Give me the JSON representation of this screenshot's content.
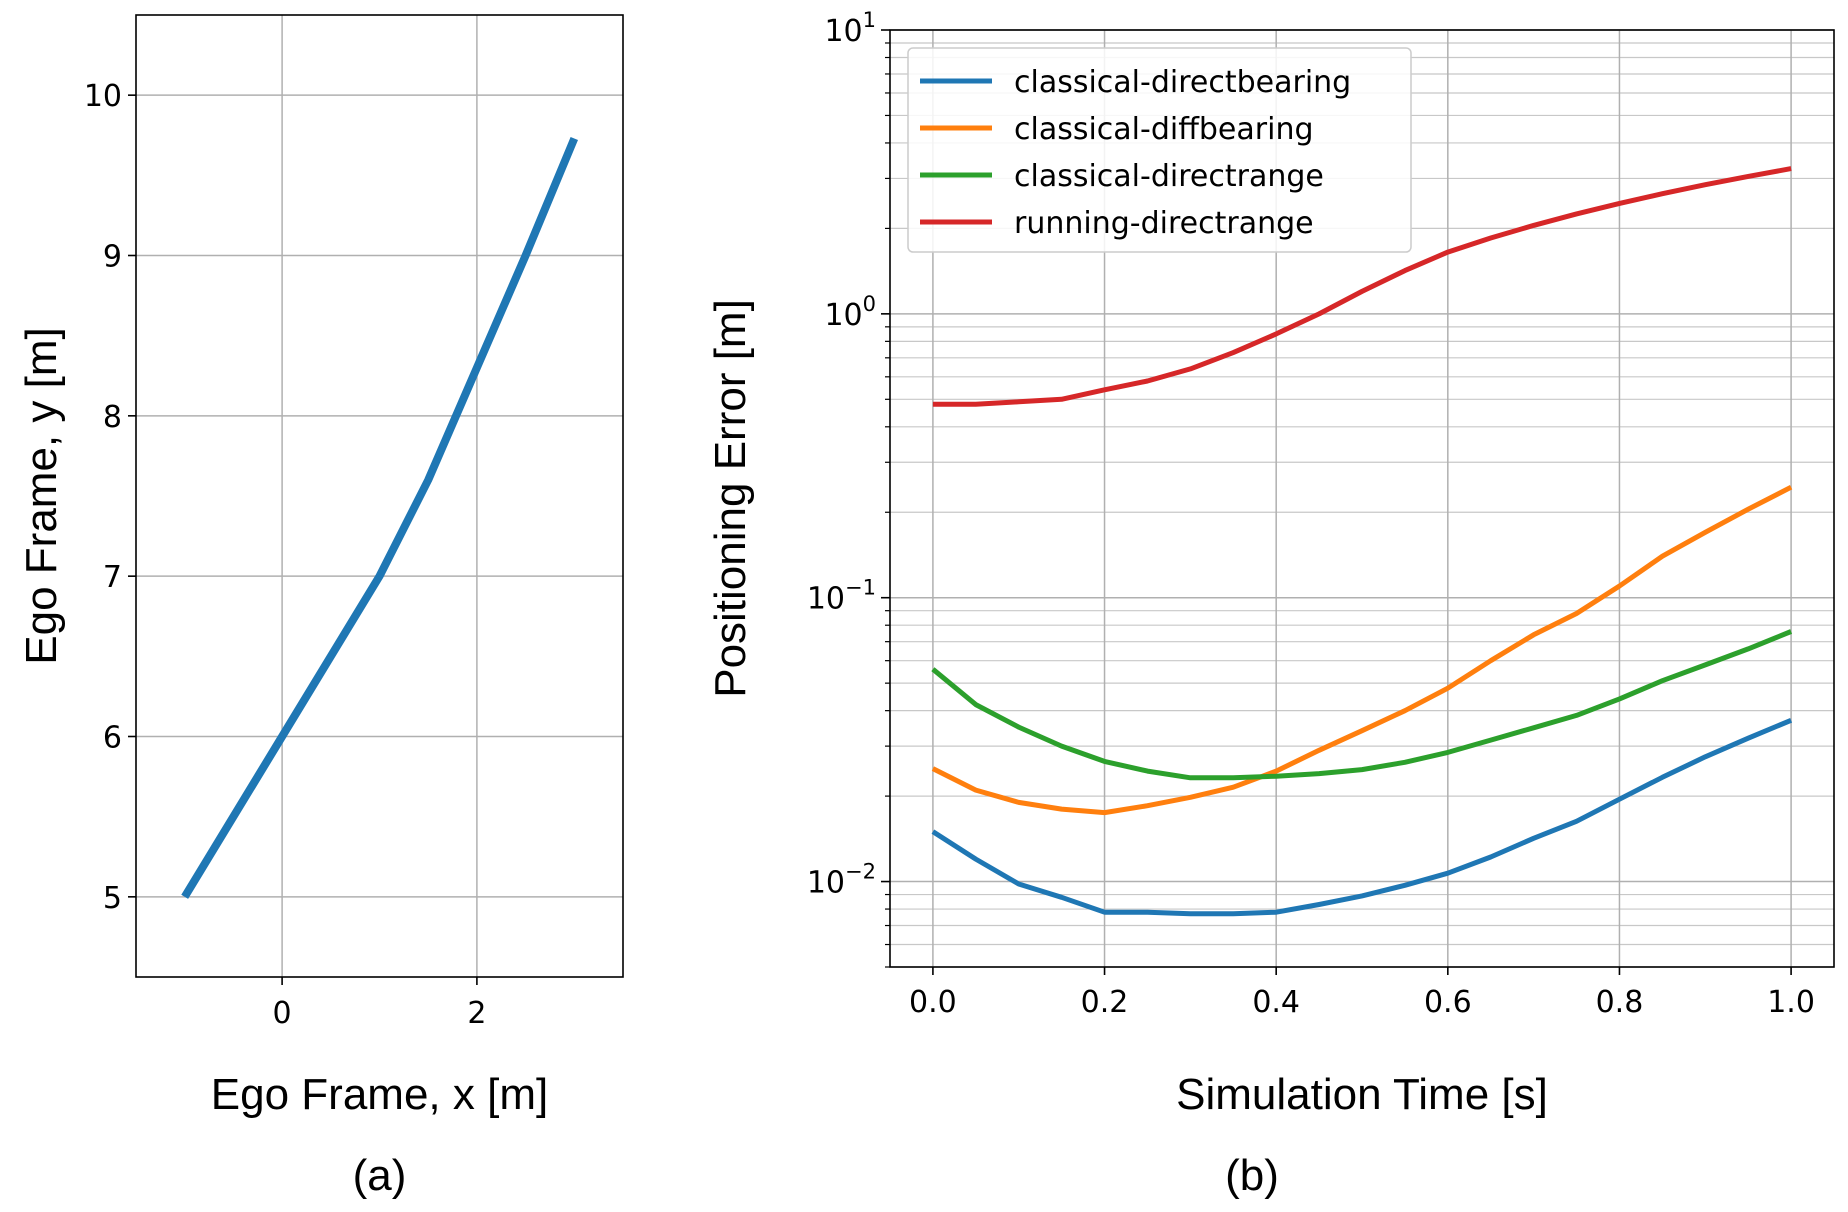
{
  "chart_data": [
    {
      "type": "line",
      "panel_label": "(a)",
      "xlabel": "Ego Frame, x [m]",
      "ylabel": "Ego Frame, y [m]",
      "xlim": [
        -1.5,
        3.5
      ],
      "ylim": [
        4.5,
        10.5
      ],
      "xticks": [
        0,
        2
      ],
      "yticks": [
        5,
        6,
        7,
        8,
        9,
        10
      ],
      "grid": true,
      "series": [
        {
          "color": "#1f77b4",
          "x": [
            -1.0,
            0.0,
            1.0,
            1.5,
            2.0,
            2.5,
            3.0
          ],
          "y": [
            5.0,
            6.0,
            7.0,
            7.6,
            8.3,
            9.0,
            9.73
          ]
        }
      ]
    },
    {
      "type": "line",
      "panel_label": "(b)",
      "xlabel": "Simulation Time [s]",
      "ylabel": "Positioning Error [m]",
      "xlim": [
        -0.05,
        1.05
      ],
      "ylim": [
        0.005,
        10
      ],
      "yscale": "log",
      "xticks": [
        "0.0",
        "0.2",
        "0.4",
        "0.6",
        "0.8",
        "1.0"
      ],
      "yticks": [
        {
          "base": "10",
          "exp": "−2"
        },
        {
          "base": "10",
          "exp": "−1"
        },
        {
          "base": "10",
          "exp": "0"
        },
        {
          "base": "10",
          "exp": "1"
        }
      ],
      "grid": true,
      "legend_position": "top-left",
      "x": [
        0.0,
        0.05,
        0.1,
        0.15,
        0.2,
        0.25,
        0.3,
        0.35,
        0.4,
        0.45,
        0.5,
        0.55,
        0.6,
        0.65,
        0.7,
        0.75,
        0.8,
        0.85,
        0.9,
        0.95,
        1.0
      ],
      "series": [
        {
          "name": "classical-directbearing",
          "color": "#1f77b4",
          "values": [
            0.015,
            0.012,
            0.0098,
            0.0088,
            0.0078,
            0.0078,
            0.0077,
            0.0077,
            0.0078,
            0.0083,
            0.0089,
            0.0097,
            0.0107,
            0.0122,
            0.0142,
            0.0163,
            0.0195,
            0.0233,
            0.0275,
            0.032,
            0.037
          ]
        },
        {
          "name": "classical-diffbearing",
          "color": "#ff7f0e",
          "values": [
            0.025,
            0.021,
            0.019,
            0.018,
            0.0175,
            0.0185,
            0.0198,
            0.0215,
            0.0245,
            0.029,
            0.034,
            0.04,
            0.048,
            0.06,
            0.074,
            0.088,
            0.11,
            0.14,
            0.17,
            0.205,
            0.245
          ]
        },
        {
          "name": "classical-directrange",
          "color": "#2ca02c",
          "values": [
            0.056,
            0.042,
            0.035,
            0.03,
            0.0265,
            0.0245,
            0.0232,
            0.0232,
            0.0235,
            0.024,
            0.0248,
            0.0263,
            0.0285,
            0.0315,
            0.0348,
            0.0385,
            0.044,
            0.051,
            0.058,
            0.066,
            0.076
          ]
        },
        {
          "name": "running-directrange",
          "color": "#d62728",
          "values": [
            0.48,
            0.48,
            0.49,
            0.5,
            0.54,
            0.58,
            0.64,
            0.73,
            0.85,
            1.0,
            1.2,
            1.42,
            1.65,
            1.85,
            2.05,
            2.25,
            2.45,
            2.65,
            2.85,
            3.05,
            3.25
          ]
        }
      ]
    }
  ]
}
